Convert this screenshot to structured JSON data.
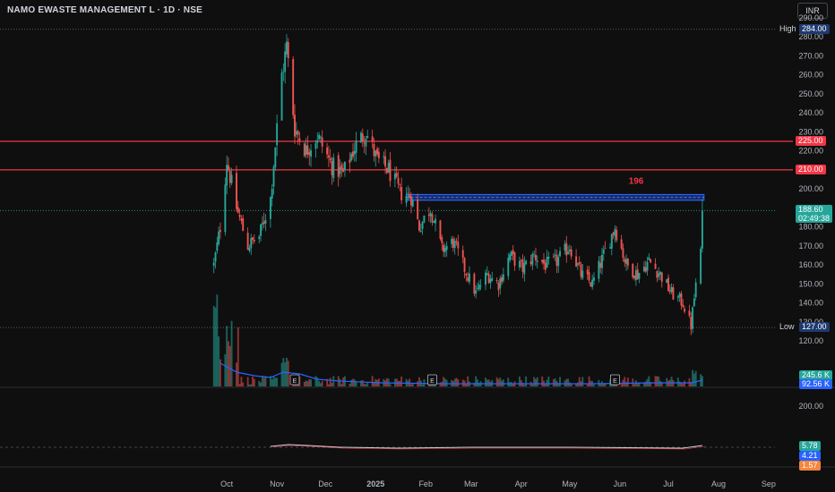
{
  "header": {
    "title": "NAMO EWASTE MANAGEMENT L · 1D · NSE",
    "currency": "INR"
  },
  "colors": {
    "background": "#0f0f0f",
    "up": "#26a69a",
    "down": "#ef5350",
    "hline": "#f23645",
    "zone": "#2962ff",
    "volume_ma": "#2962ff"
  },
  "chart_data": [
    {
      "type": "candlestick",
      "price_scale_ticks": [
        "290.00",
        "280.00",
        "270.00",
        "260.00",
        "250.00",
        "240.00",
        "230.00",
        "220.00",
        "210.00",
        "200.00",
        "190.00",
        "180.00",
        "170.00",
        "160.00",
        "150.00",
        "140.00",
        "130.00",
        "120.00"
      ],
      "ylim": [
        120,
        290
      ],
      "x_tick_labels": [
        "Oct",
        "Nov",
        "Dec",
        "2025",
        "Feb",
        "Mar",
        "Apr",
        "May",
        "Jun",
        "Jul",
        "Aug",
        "Sep"
      ],
      "high": {
        "label": "High",
        "value": "284.00"
      },
      "low": {
        "label": "Low",
        "value": "127.00"
      },
      "last": {
        "value": "188.60",
        "countdown": "02:49:38"
      },
      "horizontal_lines": [
        {
          "value": 225,
          "label": "225.00"
        },
        {
          "value": 210,
          "label": "210.00"
        }
      ],
      "zone": {
        "top": 197,
        "bottom": 194,
        "label": "196"
      },
      "events": [
        "E",
        "E",
        "E"
      ],
      "waypoints": [
        {
          "date": "2024-09-23",
          "price": 160
        },
        {
          "date": "2024-09-27",
          "price": 180
        },
        {
          "date": "2024-10-01",
          "price": 215
        },
        {
          "date": "2024-10-07",
          "price": 190
        },
        {
          "date": "2024-10-14",
          "price": 170
        },
        {
          "date": "2024-10-21",
          "price": 175
        },
        {
          "date": "2024-10-28",
          "price": 195
        },
        {
          "date": "2024-11-04",
          "price": 260
        },
        {
          "date": "2024-11-07",
          "price": 275
        },
        {
          "date": "2024-11-12",
          "price": 232
        },
        {
          "date": "2024-11-19",
          "price": 220
        },
        {
          "date": "2024-11-26",
          "price": 228
        },
        {
          "date": "2024-12-05",
          "price": 212
        },
        {
          "date": "2024-12-12",
          "price": 208
        },
        {
          "date": "2024-12-19",
          "price": 222
        },
        {
          "date": "2024-12-26",
          "price": 230
        },
        {
          "date": "2025-01-02",
          "price": 215
        },
        {
          "date": "2025-01-09",
          "price": 210
        },
        {
          "date": "2025-01-16",
          "price": 198
        },
        {
          "date": "2025-01-23",
          "price": 196
        },
        {
          "date": "2025-01-28",
          "price": 180
        },
        {
          "date": "2025-02-04",
          "price": 190
        },
        {
          "date": "2025-02-11",
          "price": 168
        },
        {
          "date": "2025-02-18",
          "price": 172
        },
        {
          "date": "2025-02-25",
          "price": 158
        },
        {
          "date": "2025-03-04",
          "price": 145
        },
        {
          "date": "2025-03-11",
          "price": 155
        },
        {
          "date": "2025-03-18",
          "price": 150
        },
        {
          "date": "2025-03-25",
          "price": 165
        },
        {
          "date": "2025-04-02",
          "price": 158
        },
        {
          "date": "2025-04-09",
          "price": 165
        },
        {
          "date": "2025-04-16",
          "price": 160
        },
        {
          "date": "2025-04-23",
          "price": 162
        },
        {
          "date": "2025-05-01",
          "price": 170
        },
        {
          "date": "2025-05-08",
          "price": 155
        },
        {
          "date": "2025-05-15",
          "price": 150
        },
        {
          "date": "2025-05-22",
          "price": 165
        },
        {
          "date": "2025-05-29",
          "price": 180
        },
        {
          "date": "2025-06-05",
          "price": 160
        },
        {
          "date": "2025-06-12",
          "price": 155
        },
        {
          "date": "2025-06-19",
          "price": 162
        },
        {
          "date": "2025-06-26",
          "price": 155
        },
        {
          "date": "2025-07-03",
          "price": 145
        },
        {
          "date": "2025-07-10",
          "price": 140
        },
        {
          "date": "2025-07-15",
          "price": 128
        },
        {
          "date": "2025-07-18",
          "price": 150
        },
        {
          "date": "2025-07-21",
          "price": 165
        },
        {
          "date": "2025-07-22",
          "price": 188.6
        }
      ]
    },
    {
      "type": "bar",
      "name": "Volume",
      "last_volume": "245.6 K",
      "volume_ma": "92.56 K"
    },
    {
      "type": "line",
      "name": "Oscillator",
      "scale_tick": "200.00",
      "values": [
        "5.78",
        "4.21",
        "1.57"
      ]
    }
  ]
}
